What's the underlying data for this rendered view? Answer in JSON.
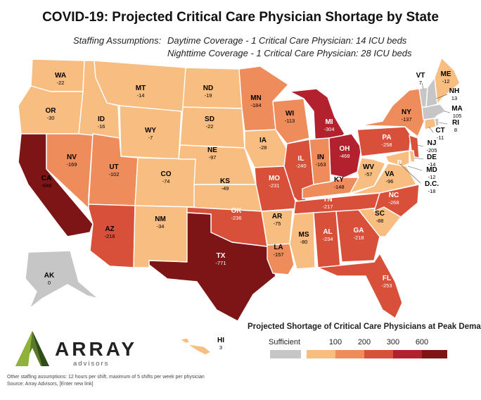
{
  "title": "COVID-19: Projected Critical Care Physician Shortage by State",
  "subtitle": {
    "lead": "Staffing Assumptions:",
    "line1": "Daytime Coverage - 1 Critical Care Physician: 14 ICU beds",
    "line2": "Nighttime Coverage - 1 Critical Care Physician: 28 ICU beds"
  },
  "colors": {
    "sufficient": "#c6c6c6",
    "band_0_100": "#f7bd81",
    "band_100_200": "#ef8c5c",
    "band_200_300": "#d9503a",
    "band_300_600": "#b3212e",
    "band_600_plus": "#7d1416"
  },
  "states": {
    "WA": {
      "abbr": "WA",
      "value": "-22"
    },
    "OR": {
      "abbr": "OR",
      "value": "-30"
    },
    "CA": {
      "abbr": "CA",
      "value": "-648"
    },
    "NV": {
      "abbr": "NV",
      "value": "-169"
    },
    "ID": {
      "abbr": "ID",
      "value": "-16"
    },
    "MT": {
      "abbr": "MT",
      "value": "-14"
    },
    "WY": {
      "abbr": "WY",
      "value": "-7"
    },
    "UT": {
      "abbr": "UT",
      "value": "-102"
    },
    "AZ": {
      "abbr": "AZ",
      "value": "-216"
    },
    "CO": {
      "abbr": "CO",
      "value": "-74"
    },
    "NM": {
      "abbr": "NM",
      "value": "-34"
    },
    "ND": {
      "abbr": "ND",
      "value": "-19"
    },
    "SD": {
      "abbr": "SD",
      "value": "-22"
    },
    "NE": {
      "abbr": "NE",
      "value": "-97"
    },
    "KS": {
      "abbr": "KS",
      "value": "-49"
    },
    "OK": {
      "abbr": "OK",
      "value": "-236"
    },
    "TX": {
      "abbr": "TX",
      "value": "-771"
    },
    "MN": {
      "abbr": "MN",
      "value": "-184"
    },
    "IA": {
      "abbr": "IA",
      "value": "-28"
    },
    "MO": {
      "abbr": "MO",
      "value": "-231"
    },
    "AR": {
      "abbr": "AR",
      "value": "-75"
    },
    "LA": {
      "abbr": "LA",
      "value": "-157"
    },
    "WI": {
      "abbr": "WI",
      "value": "-113"
    },
    "IL": {
      "abbr": "IL",
      "value": "-240"
    },
    "MI": {
      "abbr": "MI",
      "value": "-304"
    },
    "IN": {
      "abbr": "IN",
      "value": "-163"
    },
    "OH": {
      "abbr": "OH",
      "value": "-468"
    },
    "KY": {
      "abbr": "KY",
      "value": "-148"
    },
    "TN": {
      "abbr": "TN",
      "value": "-217"
    },
    "MS": {
      "abbr": "MS",
      "value": "-80"
    },
    "AL": {
      "abbr": "AL",
      "value": "-234"
    },
    "GA": {
      "abbr": "GA",
      "value": "-218"
    },
    "FL": {
      "abbr": "FL",
      "value": "-253"
    },
    "SC": {
      "abbr": "SC",
      "value": "-88"
    },
    "NC": {
      "abbr": "NC",
      "value": "-268"
    },
    "VA": {
      "abbr": "VA",
      "value": "-96"
    },
    "WV": {
      "abbr": "WV",
      "value": "-57"
    },
    "PA": {
      "abbr": "PA",
      "value": "-258"
    },
    "NY": {
      "abbr": "NY",
      "value": "-137"
    },
    "ME": {
      "abbr": "ME",
      "value": "-12"
    },
    "VT": {
      "abbr": "VT",
      "value": "7"
    },
    "NH": {
      "abbr": "NH",
      "value": "13"
    },
    "MA": {
      "abbr": "MA",
      "value": "105"
    },
    "RI": {
      "abbr": "RI",
      "value": "8"
    },
    "CT": {
      "abbr": "CT",
      "value": "-11"
    },
    "NJ": {
      "abbr": "NJ",
      "value": "-205"
    },
    "DE": {
      "abbr": "DE",
      "value": "-14"
    },
    "MD": {
      "abbr": "MD",
      "value": "-12"
    },
    "DC": {
      "abbr": "D.C.",
      "value": "-18"
    },
    "AK": {
      "abbr": "AK",
      "value": "0"
    },
    "HI": {
      "abbr": "HI",
      "value": "3"
    }
  },
  "legend": {
    "title": "Projected Shortage of Critical Care Physicians at Peak Demand",
    "sufficient_label": "Sufficient",
    "ticks": [
      "100",
      "200",
      "300",
      "600"
    ]
  },
  "logo": {
    "name": "ARRAY",
    "tagline": "advisors"
  },
  "footnote": {
    "line1": "Other staffing assumptions: 12 hours per shift, maximum of 5 shifts per week per physician",
    "line2": "Source: Array Advisors, [Enter new link]"
  }
}
